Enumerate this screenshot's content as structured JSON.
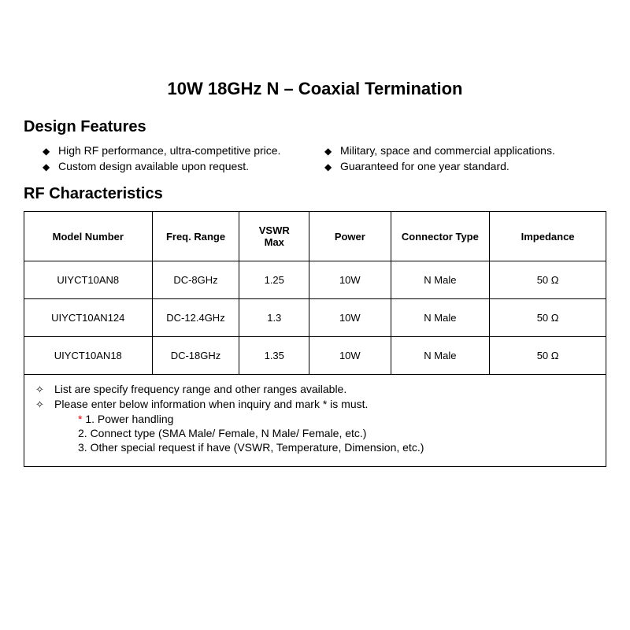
{
  "title": "10W 18GHz N – Coaxial Termination",
  "sections": {
    "features_heading": "Design Features",
    "characteristics_heading": "RF Characteristics"
  },
  "features": {
    "left": [
      "High RF performance, ultra-competitive price.",
      "Custom design available upon request."
    ],
    "right": [
      "Military, space and commercial applications.",
      "Guaranteed for one year standard."
    ]
  },
  "table": {
    "columns": [
      "Model Number",
      "Freq. Range",
      "VSWR Max",
      "Power",
      "Connector Type",
      "Impedance"
    ],
    "rows": [
      [
        "UIYCT10AN8",
        "DC-8GHz",
        "1.25",
        "10W",
        "N Male",
        "50 Ω"
      ],
      [
        "UIYCT10AN124",
        "DC-12.4GHz",
        "1.3",
        "10W",
        "N Male",
        "50 Ω"
      ],
      [
        "UIYCT10AN18",
        "DC-18GHz",
        "1.35",
        "10W",
        "N Male",
        "50 Ω"
      ]
    ],
    "col_widths": [
      "22%",
      "15%",
      "12%",
      "14%",
      "17%",
      "20%"
    ]
  },
  "notes": {
    "bullets": [
      "List are specify frequency range and other ranges available.",
      "Please enter below information when inquiry and mark * is must."
    ],
    "sublines": [
      {
        "prefix": "* ",
        "prefix_red": true,
        "text": "1. Power handling"
      },
      {
        "prefix": "",
        "prefix_red": false,
        "text": "2. Connect type (SMA Male/ Female, N Male/ Female, etc.)"
      },
      {
        "prefix": "",
        "prefix_red": false,
        "text": "3. Other special request if have (VSWR, Temperature, Dimension, etc.)"
      }
    ]
  },
  "bullet_glyphs": {
    "solid_diamond": "◆",
    "outline_diamond": "✧"
  }
}
